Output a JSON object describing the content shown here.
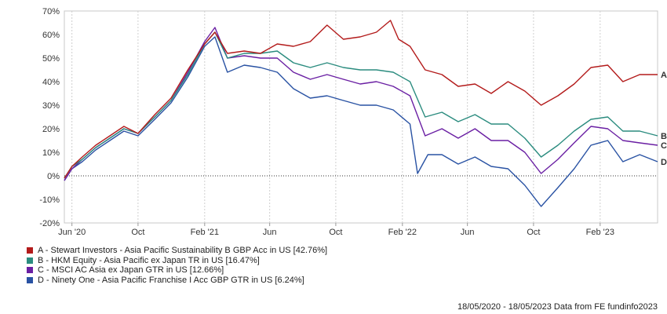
{
  "chart_data": {
    "type": "line",
    "title": "",
    "xlabel": "",
    "ylabel": "",
    "ylim": [
      -20,
      70
    ],
    "x_range": [
      "2020-05-18",
      "2023-05-18"
    ],
    "y_ticks": [
      "70%",
      "60%",
      "50%",
      "40%",
      "30%",
      "20%",
      "10%",
      "0%",
      "-10%",
      "-20%"
    ],
    "x_ticks": [
      {
        "date": "2020-06-01",
        "label": "Jun '20"
      },
      {
        "date": "2020-10-01",
        "label": "Oct"
      },
      {
        "date": "2021-02-01",
        "label": "Feb '21"
      },
      {
        "date": "2021-06-01",
        "label": "Jun"
      },
      {
        "date": "2021-10-01",
        "label": "Oct"
      },
      {
        "date": "2022-02-01",
        "label": "Feb '22"
      },
      {
        "date": "2022-06-01",
        "label": "Jun"
      },
      {
        "date": "2022-10-01",
        "label": "Oct"
      },
      {
        "date": "2023-02-01",
        "label": "Feb '23"
      }
    ],
    "grid": "vertical dashed at ticks, dotted zero line",
    "legend_position": "bottom",
    "series": [
      {
        "name": "A - Stewart Investors - Asia Pacific Sustainability B GBP Acc in US [42.76%]",
        "end_label": "A",
        "color": "#b31b1b",
        "points": [
          [
            "2020-05-18",
            -1
          ],
          [
            "2020-06-01",
            4
          ],
          [
            "2020-06-20",
            8
          ],
          [
            "2020-07-15",
            13
          ],
          [
            "2020-08-10",
            17
          ],
          [
            "2020-09-05",
            21
          ],
          [
            "2020-10-01",
            18
          ],
          [
            "2020-11-01",
            26
          ],
          [
            "2020-12-01",
            33
          ],
          [
            "2021-01-01",
            45
          ],
          [
            "2021-02-01",
            56
          ],
          [
            "2021-02-20",
            61
          ],
          [
            "2021-03-15",
            52
          ],
          [
            "2021-04-15",
            53
          ],
          [
            "2021-05-15",
            52
          ],
          [
            "2021-06-15",
            56
          ],
          [
            "2021-07-15",
            55
          ],
          [
            "2021-08-15",
            57
          ],
          [
            "2021-09-15",
            64
          ],
          [
            "2021-10-15",
            58
          ],
          [
            "2021-11-15",
            59
          ],
          [
            "2021-12-15",
            61
          ],
          [
            "2022-01-10",
            66
          ],
          [
            "2022-01-25",
            58
          ],
          [
            "2022-02-15",
            55
          ],
          [
            "2022-03-15",
            45
          ],
          [
            "2022-04-15",
            43
          ],
          [
            "2022-05-15",
            38
          ],
          [
            "2022-06-15",
            39
          ],
          [
            "2022-07-15",
            35
          ],
          [
            "2022-08-15",
            40
          ],
          [
            "2022-09-15",
            36
          ],
          [
            "2022-10-15",
            30
          ],
          [
            "2022-11-15",
            34
          ],
          [
            "2022-12-15",
            39
          ],
          [
            "2023-01-15",
            46
          ],
          [
            "2023-02-15",
            47
          ],
          [
            "2023-03-15",
            40
          ],
          [
            "2023-04-15",
            43
          ],
          [
            "2023-05-18",
            43
          ]
        ]
      },
      {
        "name": "B - HKM Equity - Asia Pacific ex Japan TR in US [16.47%]",
        "end_label": "B",
        "color": "#2b8c7f",
        "points": [
          [
            "2020-05-18",
            -1
          ],
          [
            "2020-06-01",
            4
          ],
          [
            "2020-06-20",
            7
          ],
          [
            "2020-07-15",
            12
          ],
          [
            "2020-08-10",
            16
          ],
          [
            "2020-09-05",
            20
          ],
          [
            "2020-10-01",
            18
          ],
          [
            "2020-11-01",
            25
          ],
          [
            "2020-12-01",
            32
          ],
          [
            "2021-01-01",
            43
          ],
          [
            "2021-02-01",
            56
          ],
          [
            "2021-02-20",
            61
          ],
          [
            "2021-03-15",
            50
          ],
          [
            "2021-04-15",
            52
          ],
          [
            "2021-05-15",
            52
          ],
          [
            "2021-06-15",
            53
          ],
          [
            "2021-07-15",
            48
          ],
          [
            "2021-08-15",
            46
          ],
          [
            "2021-09-15",
            48
          ],
          [
            "2021-10-15",
            46
          ],
          [
            "2021-11-15",
            45
          ],
          [
            "2021-12-15",
            45
          ],
          [
            "2022-01-15",
            44
          ],
          [
            "2022-02-15",
            40
          ],
          [
            "2022-03-15",
            25
          ],
          [
            "2022-04-15",
            27
          ],
          [
            "2022-05-15",
            23
          ],
          [
            "2022-06-15",
            26
          ],
          [
            "2022-07-15",
            22
          ],
          [
            "2022-08-15",
            22
          ],
          [
            "2022-09-15",
            16
          ],
          [
            "2022-10-15",
            8
          ],
          [
            "2022-11-15",
            13
          ],
          [
            "2022-12-15",
            19
          ],
          [
            "2023-01-15",
            24
          ],
          [
            "2023-02-15",
            25
          ],
          [
            "2023-03-15",
            19
          ],
          [
            "2023-04-15",
            19
          ],
          [
            "2023-05-18",
            17
          ]
        ]
      },
      {
        "name": "C - MSCI AC Asia ex Japan GTR in US [12.66%]",
        "end_label": "C",
        "color": "#6a1fa3",
        "points": [
          [
            "2020-05-18",
            -2
          ],
          [
            "2020-06-01",
            3
          ],
          [
            "2020-06-20",
            7
          ],
          [
            "2020-07-15",
            12
          ],
          [
            "2020-08-10",
            16
          ],
          [
            "2020-09-05",
            20
          ],
          [
            "2020-10-01",
            18
          ],
          [
            "2020-11-01",
            25
          ],
          [
            "2020-12-01",
            32
          ],
          [
            "2021-01-01",
            44
          ],
          [
            "2021-02-01",
            57
          ],
          [
            "2021-02-20",
            63
          ],
          [
            "2021-03-15",
            50
          ],
          [
            "2021-04-15",
            51
          ],
          [
            "2021-05-15",
            50
          ],
          [
            "2021-06-15",
            50
          ],
          [
            "2021-07-15",
            44
          ],
          [
            "2021-08-15",
            41
          ],
          [
            "2021-09-15",
            43
          ],
          [
            "2021-10-15",
            41
          ],
          [
            "2021-11-15",
            39
          ],
          [
            "2021-12-15",
            40
          ],
          [
            "2022-01-15",
            38
          ],
          [
            "2022-02-15",
            34
          ],
          [
            "2022-03-15",
            17
          ],
          [
            "2022-04-15",
            20
          ],
          [
            "2022-05-15",
            16
          ],
          [
            "2022-06-15",
            20
          ],
          [
            "2022-07-15",
            15
          ],
          [
            "2022-08-15",
            15
          ],
          [
            "2022-09-15",
            10
          ],
          [
            "2022-10-15",
            1
          ],
          [
            "2022-11-15",
            7
          ],
          [
            "2022-12-15",
            14
          ],
          [
            "2023-01-15",
            21
          ],
          [
            "2023-02-15",
            20
          ],
          [
            "2023-03-15",
            15
          ],
          [
            "2023-04-15",
            14
          ],
          [
            "2023-05-18",
            13
          ]
        ]
      },
      {
        "name": "D - Ninety One - Asia Pacific Franchise I Acc GBP GTR in US [6.24%]",
        "end_label": "D",
        "color": "#2952a3",
        "points": [
          [
            "2020-05-18",
            -2
          ],
          [
            "2020-06-01",
            3
          ],
          [
            "2020-06-20",
            6
          ],
          [
            "2020-07-15",
            11
          ],
          [
            "2020-08-10",
            15
          ],
          [
            "2020-09-05",
            19
          ],
          [
            "2020-10-01",
            17
          ],
          [
            "2020-11-01",
            24
          ],
          [
            "2020-12-01",
            31
          ],
          [
            "2021-01-01",
            42
          ],
          [
            "2021-02-01",
            55
          ],
          [
            "2021-02-20",
            59
          ],
          [
            "2021-03-15",
            44
          ],
          [
            "2021-04-15",
            47
          ],
          [
            "2021-05-15",
            46
          ],
          [
            "2021-06-15",
            44
          ],
          [
            "2021-07-15",
            37
          ],
          [
            "2021-08-15",
            33
          ],
          [
            "2021-09-15",
            34
          ],
          [
            "2021-10-15",
            32
          ],
          [
            "2021-11-15",
            30
          ],
          [
            "2021-12-15",
            30
          ],
          [
            "2022-01-15",
            28
          ],
          [
            "2022-02-15",
            22
          ],
          [
            "2022-03-01",
            1
          ],
          [
            "2022-03-20",
            9
          ],
          [
            "2022-04-15",
            9
          ],
          [
            "2022-05-15",
            5
          ],
          [
            "2022-06-15",
            8
          ],
          [
            "2022-07-15",
            4
          ],
          [
            "2022-08-15",
            3
          ],
          [
            "2022-09-15",
            -4
          ],
          [
            "2022-10-15",
            -13
          ],
          [
            "2022-11-15",
            -5
          ],
          [
            "2022-12-15",
            3
          ],
          [
            "2023-01-15",
            13
          ],
          [
            "2023-02-15",
            15
          ],
          [
            "2023-03-15",
            6
          ],
          [
            "2023-04-15",
            9
          ],
          [
            "2023-05-18",
            6
          ]
        ]
      }
    ]
  },
  "footer": {
    "date_range": "18/05/2020 - 18/05/2023",
    "source": "Data from FE fundinfo2023"
  }
}
